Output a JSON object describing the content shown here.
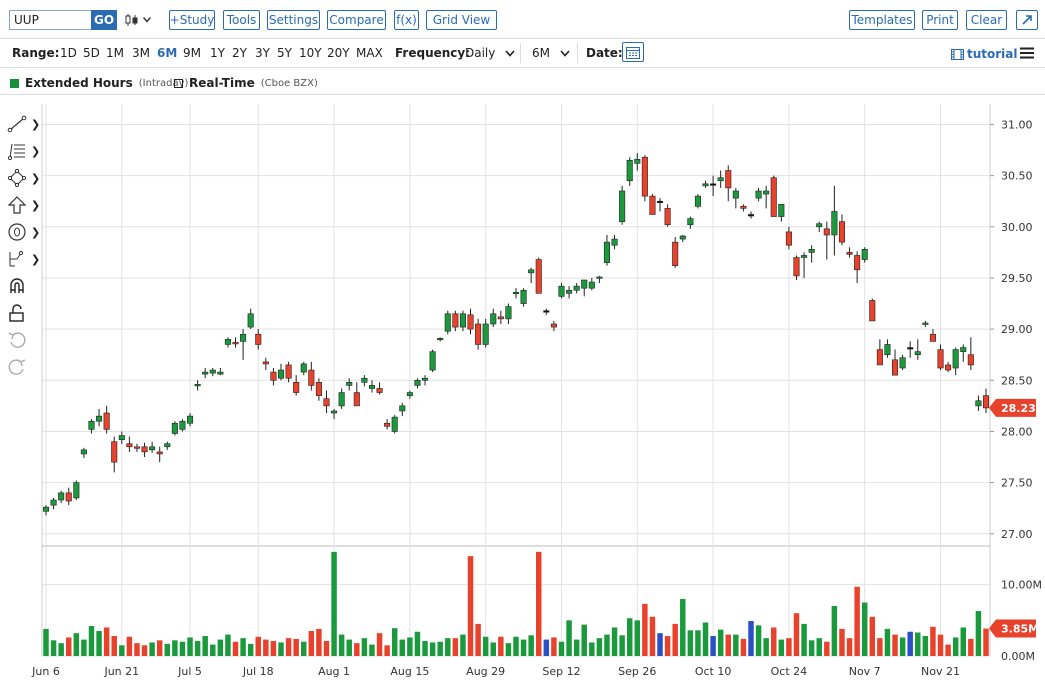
{
  "toolbar": {
    "symbol": "UUP",
    "go_label": "GO",
    "buttons": {
      "study": "+Study",
      "tools": "Tools",
      "settings": "Settings",
      "compare": "Compare",
      "fx": "f(x)",
      "grid_view": "Grid View",
      "templates": "Templates",
      "print": "Print",
      "clear": "Clear"
    }
  },
  "rangebar": {
    "range_label": "Range:",
    "ranges": [
      "1D",
      "5D",
      "1M",
      "3M",
      "6M",
      "9M",
      "1Y",
      "2Y",
      "3Y",
      "5Y",
      "10Y",
      "20Y",
      "MAX"
    ],
    "selected_range": "6M",
    "frequency_label": "Frequency:",
    "frequency_value": "Daily",
    "period_value": "6M",
    "date_label": "Date:",
    "tutorial_label": "tutorial"
  },
  "legend": {
    "extended_label": "Extended Hours",
    "extended_sub": "(Intraday)",
    "realtime_label": "Real-Time",
    "realtime_sub": "(Cboe BZX)",
    "extended_color": "#1a8f3a"
  },
  "colors": {
    "up": "#1a9a3c",
    "down": "#e8412c",
    "flat": "#111111",
    "blue": "#2b4fc4",
    "accent": "#2a6bb3"
  },
  "chart_data": {
    "type": "candlestick",
    "price_ticks": [
      "31.00",
      "30.50",
      "30.00",
      "29.50",
      "29.00",
      "28.50",
      "28.00",
      "27.50",
      "27.00"
    ],
    "price_range": [
      26.9,
      31.2
    ],
    "last_price": "28.23",
    "volume_ticks": [
      "10.00M",
      "0.00M"
    ],
    "volume_range": [
      0,
      15
    ],
    "last_volume": "3.85M",
    "x_labels": [
      "Jun 6",
      "Jun 21",
      "Jul 5",
      "Jul 18",
      "Aug 1",
      "Aug 15",
      "Aug 29",
      "Sep 12",
      "Sep 26",
      "Oct 10",
      "Oct 24",
      "Nov 7",
      "Nov 21"
    ],
    "x_label_bars": [
      0,
      10,
      19,
      28,
      38,
      48,
      58,
      68,
      78,
      88,
      98,
      108,
      118
    ],
    "bars": [
      [
        27.22,
        27.28,
        27.18,
        27.26,
        3.8
      ],
      [
        27.28,
        27.35,
        27.24,
        27.33,
        2.2
      ],
      [
        27.33,
        27.42,
        27.3,
        27.4,
        1.8
      ],
      [
        27.4,
        27.45,
        27.28,
        27.32,
        2.6
      ],
      [
        27.35,
        27.52,
        27.33,
        27.5,
        3.2
      ],
      [
        27.78,
        27.84,
        27.74,
        27.82,
        2.3
      ],
      [
        28.02,
        28.12,
        27.98,
        28.1,
        4.2
      ],
      [
        28.1,
        28.22,
        28.05,
        28.15,
        3.5
      ],
      [
        28.18,
        28.25,
        27.98,
        28.02,
        4.0
      ],
      [
        27.9,
        27.95,
        27.6,
        27.7,
        2.8
      ],
      [
        27.92,
        28.0,
        27.88,
        27.96,
        1.5
      ],
      [
        27.88,
        27.95,
        27.8,
        27.85,
        2.7
      ],
      [
        27.85,
        27.88,
        27.8,
        27.84,
        1.8
      ],
      [
        27.85,
        27.89,
        27.75,
        27.8,
        1.5
      ],
      [
        27.82,
        27.9,
        27.79,
        27.85,
        1.9
      ],
      [
        27.8,
        27.85,
        27.7,
        27.78,
        2.2
      ],
      [
        27.85,
        27.9,
        27.82,
        27.88,
        1.7
      ],
      [
        27.98,
        28.1,
        27.96,
        28.08,
        2.2
      ],
      [
        28.02,
        28.12,
        28.0,
        28.1,
        2.0
      ],
      [
        28.08,
        28.18,
        28.05,
        28.15,
        2.6
      ],
      [
        28.45,
        28.5,
        28.4,
        28.46,
        2.1
      ],
      [
        28.56,
        28.62,
        28.52,
        28.58,
        2.8
      ],
      [
        28.57,
        28.62,
        28.54,
        28.6,
        1.6
      ],
      [
        28.56,
        28.62,
        28.55,
        28.58,
        2.3
      ],
      [
        28.85,
        28.92,
        28.82,
        28.9,
        3.0
      ],
      [
        28.87,
        28.92,
        28.82,
        28.86,
        2.0
      ],
      [
        28.88,
        29.0,
        28.7,
        28.95,
        2.5
      ],
      [
        29.02,
        29.2,
        29.0,
        29.15,
        1.7
      ],
      [
        28.95,
        29.0,
        28.8,
        28.85,
        2.7
      ],
      [
        28.68,
        28.72,
        28.6,
        28.66,
        2.3
      ],
      [
        28.58,
        28.62,
        28.45,
        28.5,
        2.1
      ],
      [
        28.52,
        28.66,
        28.5,
        28.6,
        1.9
      ],
      [
        28.65,
        28.68,
        28.48,
        28.52,
        2.5
      ],
      [
        28.48,
        28.55,
        28.35,
        28.38,
        2.4
      ],
      [
        28.58,
        28.68,
        28.55,
        28.66,
        2.0
      ],
      [
        28.6,
        28.68,
        28.4,
        28.45,
        3.5
      ],
      [
        28.48,
        28.52,
        28.3,
        28.35,
        3.8
      ],
      [
        28.32,
        28.4,
        28.18,
        28.25,
        2.1
      ],
      [
        28.18,
        28.22,
        28.12,
        28.2,
        14.6
      ],
      [
        28.25,
        28.42,
        28.22,
        28.38,
        3.0
      ],
      [
        28.45,
        28.52,
        28.4,
        28.48,
        2.3
      ],
      [
        28.38,
        28.48,
        28.25,
        28.25,
        1.8
      ],
      [
        28.48,
        28.55,
        28.44,
        28.52,
        2.5
      ],
      [
        28.42,
        28.5,
        28.38,
        28.45,
        1.6
      ],
      [
        28.42,
        28.48,
        28.36,
        28.38,
        3.2
      ],
      [
        28.08,
        28.12,
        28.02,
        28.05,
        1.5
      ],
      [
        28.0,
        28.16,
        27.98,
        28.14,
        3.9
      ],
      [
        28.2,
        28.28,
        28.15,
        28.25,
        2.3
      ],
      [
        28.35,
        28.4,
        28.32,
        28.38,
        2.6
      ],
      [
        28.45,
        28.52,
        28.42,
        28.5,
        3.4
      ],
      [
        28.5,
        28.55,
        28.45,
        28.52,
        2.1
      ],
      [
        28.6,
        28.8,
        28.58,
        28.78,
        1.9
      ],
      [
        28.9,
        28.92,
        28.88,
        28.91,
        2.0
      ],
      [
        28.98,
        29.18,
        28.95,
        29.15,
        2.5
      ],
      [
        29.15,
        29.18,
        28.98,
        29.02,
        2.5
      ],
      [
        29.02,
        29.18,
        28.98,
        29.15,
        3.0
      ],
      [
        29.14,
        29.2,
        28.95,
        29.0,
        14.0
      ],
      [
        29.05,
        29.1,
        28.8,
        28.85,
        4.5
      ],
      [
        28.85,
        29.1,
        28.82,
        29.05,
        2.7
      ],
      [
        29.05,
        29.2,
        29.02,
        29.15,
        1.9
      ],
      [
        29.12,
        29.18,
        29.05,
        29.1,
        2.7
      ],
      [
        29.1,
        29.25,
        29.05,
        29.22,
        1.8
      ],
      [
        29.35,
        29.4,
        29.3,
        29.36,
        2.7
      ],
      [
        29.25,
        29.4,
        29.22,
        29.38,
        2.3
      ],
      [
        29.55,
        29.6,
        29.45,
        29.58,
        2.9
      ],
      [
        29.68,
        29.7,
        29.35,
        29.35,
        14.6
      ],
      [
        29.18,
        29.2,
        29.14,
        29.18,
        2.3
      ],
      [
        29.05,
        29.08,
        28.98,
        29.02,
        2.6
      ],
      [
        29.32,
        29.45,
        29.3,
        29.42,
        2.0
      ],
      [
        29.35,
        29.42,
        29.3,
        29.38,
        5.0
      ],
      [
        29.38,
        29.45,
        29.35,
        29.42,
        2.3
      ],
      [
        29.4,
        29.48,
        29.32,
        29.48,
        4.4
      ],
      [
        29.4,
        29.5,
        29.38,
        29.46,
        1.9
      ],
      [
        29.5,
        29.52,
        29.45,
        29.51,
        2.5
      ],
      [
        29.65,
        29.92,
        29.62,
        29.85,
        3.0
      ],
      [
        29.82,
        29.92,
        29.78,
        29.88,
        4.0
      ],
      [
        30.05,
        30.4,
        30.02,
        30.35,
        2.9
      ],
      [
        30.45,
        30.68,
        30.4,
        30.65,
        5.3
      ],
      [
        30.62,
        30.72,
        30.55,
        30.66,
        5.0
      ],
      [
        30.68,
        30.7,
        30.25,
        30.3,
        7.3
      ],
      [
        30.3,
        30.32,
        30.12,
        30.12,
        5.5
      ],
      [
        30.25,
        30.28,
        30.15,
        30.25,
        3.2
      ],
      [
        30.18,
        30.22,
        30.0,
        30.02,
        2.8
      ],
      [
        29.85,
        29.9,
        29.6,
        29.62,
        4.5
      ],
      [
        29.88,
        29.92,
        29.85,
        29.91,
        8.0
      ],
      [
        30.02,
        30.1,
        29.98,
        30.08,
        3.6
      ],
      [
        30.2,
        30.32,
        30.18,
        30.3,
        3.6
      ],
      [
        30.4,
        30.45,
        30.38,
        30.42,
        4.7
      ],
      [
        30.42,
        30.5,
        30.3,
        30.42,
        2.8
      ],
      [
        30.45,
        30.55,
        30.38,
        30.48,
        3.7
      ],
      [
        30.55,
        30.6,
        30.25,
        30.38,
        3.0
      ],
      [
        30.28,
        30.38,
        30.18,
        30.35,
        3.0
      ],
      [
        30.2,
        30.22,
        30.15,
        30.18,
        2.4
      ],
      [
        30.12,
        30.15,
        30.08,
        30.12,
        4.9
      ],
      [
        30.28,
        30.38,
        30.25,
        30.35,
        4.3
      ],
      [
        30.32,
        30.4,
        30.18,
        30.35,
        2.5
      ],
      [
        30.48,
        30.5,
        30.1,
        30.1,
        4.0
      ],
      [
        30.1,
        30.2,
        30.05,
        30.22,
        2.3
      ],
      [
        29.95,
        30.0,
        29.78,
        29.82,
        2.5
      ],
      [
        29.7,
        29.72,
        29.48,
        29.52,
        6.0
      ],
      [
        29.7,
        29.75,
        29.5,
        29.72,
        4.5
      ],
      [
        29.75,
        29.82,
        29.65,
        29.78,
        2.2
      ],
      [
        30.0,
        30.05,
        29.95,
        30.03,
        2.5
      ],
      [
        29.98,
        30.05,
        29.68,
        29.92,
        2.0
      ],
      [
        29.92,
        30.4,
        29.72,
        30.15,
        7.0
      ],
      [
        30.05,
        30.12,
        29.82,
        29.85,
        3.8
      ],
      [
        29.75,
        29.8,
        29.7,
        29.73,
        2.5
      ],
      [
        29.72,
        29.76,
        29.45,
        29.58,
        9.7
      ],
      [
        29.68,
        29.8,
        29.65,
        29.78,
        7.5
      ],
      [
        29.28,
        29.3,
        29.1,
        29.08,
        5.5
      ],
      [
        28.8,
        28.9,
        28.65,
        28.65,
        2.5
      ],
      [
        28.75,
        28.9,
        28.72,
        28.85,
        3.8
      ],
      [
        28.7,
        28.8,
        28.55,
        28.55,
        3.0
      ],
      [
        28.62,
        28.75,
        28.6,
        28.72,
        2.6
      ],
      [
        28.82,
        28.88,
        28.72,
        28.82,
        3.4
      ],
      [
        28.75,
        28.9,
        28.7,
        28.78,
        3.3
      ],
      [
        29.05,
        29.08,
        29.02,
        29.06,
        2.8
      ],
      [
        28.95,
        29.0,
        28.9,
        28.88,
        4.1
      ],
      [
        28.8,
        28.85,
        28.6,
        28.62,
        3.0
      ],
      [
        28.65,
        28.68,
        28.58,
        28.6,
        1.6
      ],
      [
        28.62,
        28.82,
        28.55,
        28.8,
        2.6
      ],
      [
        28.78,
        28.85,
        28.68,
        28.82,
        4.0
      ],
      [
        28.75,
        28.92,
        28.6,
        28.65,
        2.4
      ],
      [
        28.25,
        28.35,
        28.2,
        28.3,
        6.3
      ],
      [
        28.35,
        28.42,
        28.18,
        28.23,
        3.85
      ]
    ]
  }
}
